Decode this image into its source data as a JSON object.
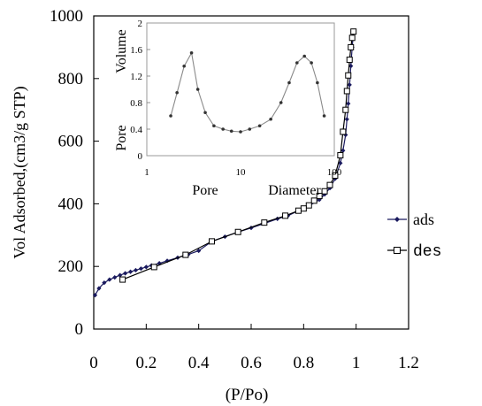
{
  "chart_data": [
    {
      "type": "line",
      "xlabel": "(P/Po)",
      "ylabel": "Vol Adsorbed,(cm3/g STP)",
      "xlim": [
        0,
        1.2
      ],
      "ylim": [
        0,
        1000
      ],
      "x_ticks": [
        "0",
        "0.2",
        "0.4",
        "0.6",
        "0.8",
        "1",
        "1.2"
      ],
      "y_ticks": [
        "0",
        "200",
        "400",
        "600",
        "800",
        "1000"
      ],
      "x_tick_values": [
        0,
        0.2,
        0.4,
        0.6,
        0.8,
        1.0,
        1.2
      ],
      "y_tick_values": [
        0,
        200,
        400,
        600,
        800,
        1000
      ],
      "grid": false,
      "legend_position": "right",
      "series": [
        {
          "name": "ads",
          "marker": "diamond-filled",
          "color": "#1a1a5e",
          "x": [
            0.005,
            0.02,
            0.04,
            0.06,
            0.08,
            0.1,
            0.12,
            0.14,
            0.16,
            0.18,
            0.2,
            0.22,
            0.25,
            0.28,
            0.32,
            0.36,
            0.4,
            0.45,
            0.5,
            0.55,
            0.6,
            0.65,
            0.7,
            0.74,
            0.78,
            0.82,
            0.86,
            0.88,
            0.9,
            0.92,
            0.94,
            0.95,
            0.96,
            0.965,
            0.97,
            0.975,
            0.98,
            0.985,
            0.99
          ],
          "y": [
            108,
            130,
            148,
            158,
            165,
            172,
            178,
            183,
            188,
            193,
            198,
            203,
            210,
            218,
            228,
            238,
            250,
            280,
            295,
            310,
            323,
            337,
            352,
            362,
            378,
            393,
            413,
            430,
            450,
            480,
            530,
            570,
            620,
            670,
            720,
            780,
            840,
            900,
            950
          ]
        },
        {
          "name": "des",
          "marker": "square-open",
          "color": "#000000",
          "x": [
            0.99,
            0.985,
            0.98,
            0.975,
            0.97,
            0.965,
            0.96,
            0.95,
            0.94,
            0.92,
            0.9,
            0.88,
            0.86,
            0.84,
            0.82,
            0.8,
            0.78,
            0.73,
            0.65,
            0.55,
            0.45,
            0.35,
            0.23,
            0.11
          ],
          "y": [
            950,
            930,
            900,
            860,
            810,
            760,
            700,
            630,
            555,
            490,
            460,
            440,
            425,
            410,
            395,
            385,
            378,
            362,
            340,
            310,
            280,
            237,
            198,
            158
          ]
        }
      ]
    },
    {
      "type": "line",
      "xlabel": "Pore Diameter",
      "ylabel": "Pore Volume",
      "x_scale": "log",
      "xlim": [
        1,
        100
      ],
      "ylim": [
        0,
        2
      ],
      "x_ticks": [
        "1",
        "10",
        "100"
      ],
      "y_ticks": [
        "0",
        "0.4",
        "0.8",
        "1.2",
        "1.6",
        "2"
      ],
      "x_tick_values": [
        1,
        10,
        100
      ],
      "y_tick_values": [
        0,
        0.4,
        0.8,
        1.2,
        1.6,
        2
      ],
      "grid": false,
      "series": [
        {
          "x": [
            1.8,
            2.1,
            2.5,
            3.0,
            3.5,
            4.2,
            5.2,
            6.5,
            8.0,
            10.0,
            12.5,
            16.0,
            21.0,
            27.0,
            33.0,
            40.0,
            48.0,
            57.0,
            66.0,
            78.0
          ],
          "y": [
            0.6,
            0.95,
            1.35,
            1.55,
            1.0,
            0.65,
            0.45,
            0.4,
            0.37,
            0.36,
            0.4,
            0.45,
            0.55,
            0.8,
            1.1,
            1.4,
            1.5,
            1.4,
            1.1,
            0.6
          ]
        }
      ]
    }
  ]
}
